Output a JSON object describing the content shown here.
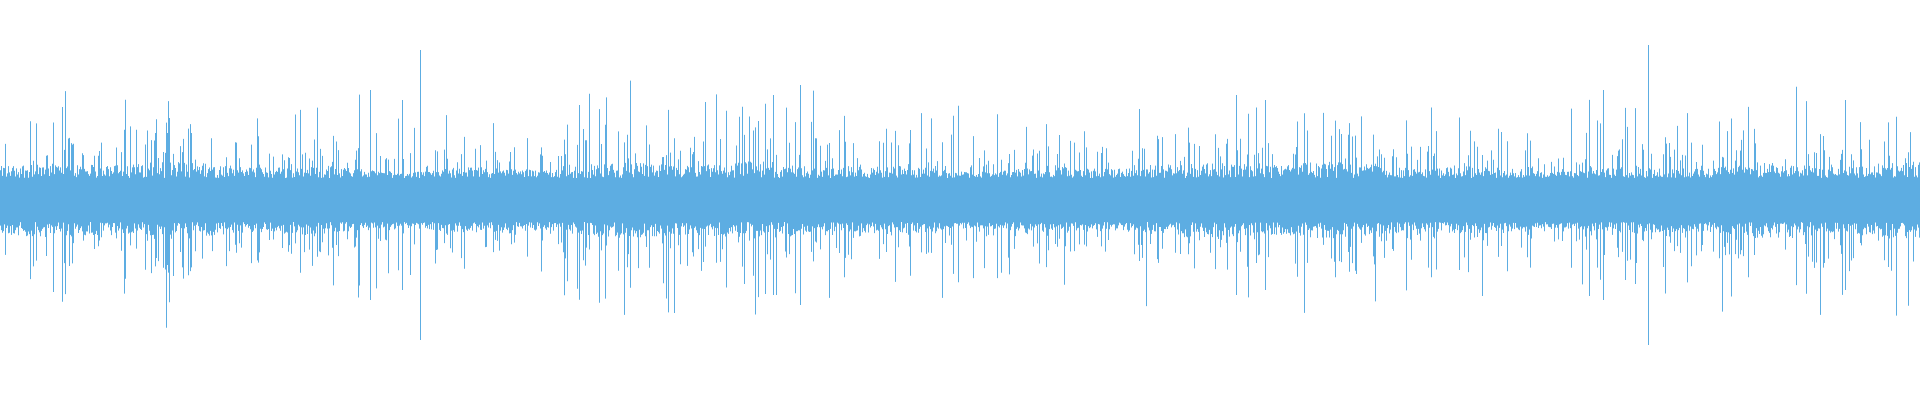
{
  "waveform": {
    "wave_color": "#5dade2",
    "background_color": "#ffffff"
  }
}
